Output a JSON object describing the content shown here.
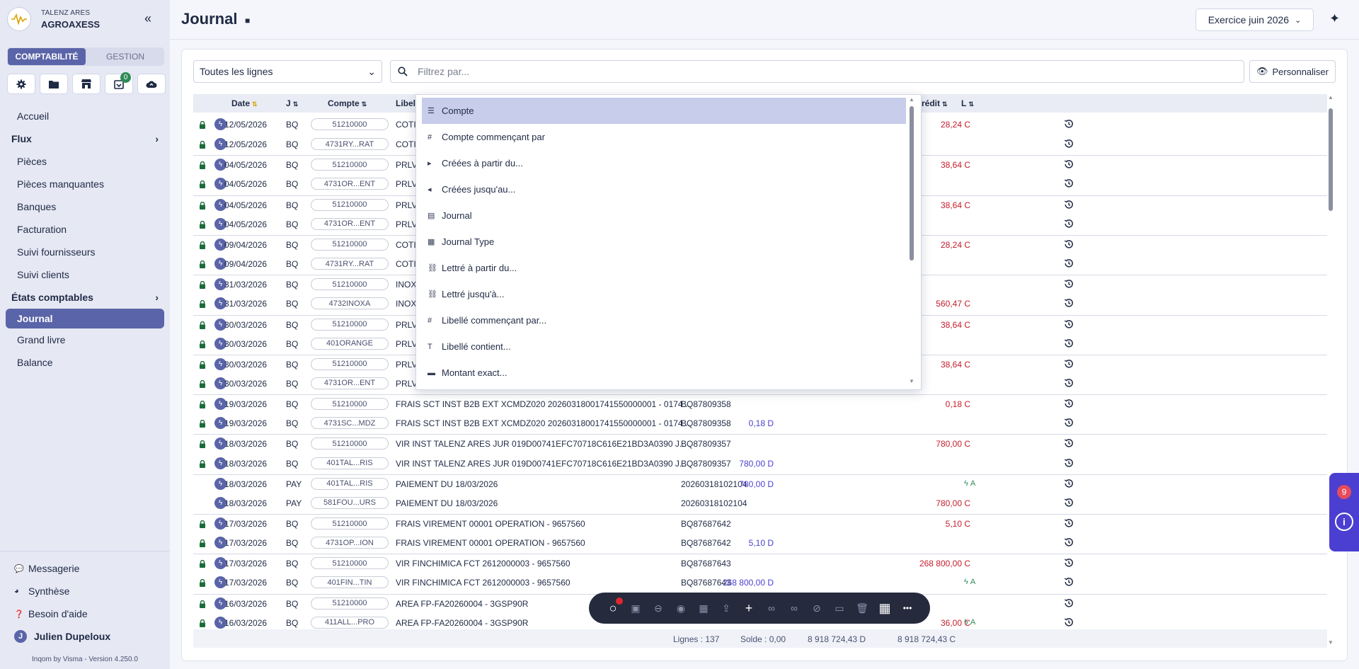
{
  "brand": {
    "subtitle": "TALENZ ARES",
    "name": "AGROAXESS"
  },
  "mode_tabs": [
    "COMPTABILITÉ",
    "GESTION"
  ],
  "quick_actions": [
    {
      "icon": "gear-icon"
    },
    {
      "icon": "folder-icon"
    },
    {
      "icon": "store-icon"
    },
    {
      "icon": "inbox-icon",
      "badge": "0"
    },
    {
      "icon": "cloud-upload-icon"
    }
  ],
  "nav": {
    "home": "Accueil",
    "flux": "Flux",
    "flux_items": [
      "Pièces",
      "Pièces manquantes",
      "Banques",
      "Facturation",
      "Suivi fournisseurs",
      "Suivi clients"
    ],
    "etats": "États comptables",
    "etats_items": [
      "Journal",
      "Grand livre",
      "Balance"
    ]
  },
  "nav_bottom": [
    "Messagerie",
    "Synthèse",
    "Besoin d'aide"
  ],
  "user": {
    "initial": "J",
    "name": "Julien Dupeloux"
  },
  "version": "Inqom by Visma - Version 4.250.0",
  "header": {
    "title": "Journal",
    "exercise": "Exercice juin 2026"
  },
  "filters": {
    "lines_select": "Toutes les lignes",
    "search_placeholder": "Filtrez par...",
    "customize": "Personnaliser"
  },
  "table": {
    "headers": {
      "date": "Date",
      "journal": "J",
      "account": "Compte",
      "label": "Libellé",
      "credit": "rédit",
      "lettrage": "L"
    },
    "rows": [
      {
        "lock": true,
        "zap": true,
        "date": "12/05/2026",
        "j": "BQ",
        "acct": "51210000",
        "label": "COTIS",
        "ref": "",
        "debit": "",
        "credit": "28,24 C",
        "let": "",
        "sep": false
      },
      {
        "lock": true,
        "zap": true,
        "date": "12/05/2026",
        "j": "BQ",
        "acct": "4731RY...RAT",
        "label": "COTIS",
        "ref": "",
        "debit": "",
        "credit": "",
        "let": "",
        "sep": false
      },
      {
        "lock": true,
        "zap": true,
        "date": "04/05/2026",
        "j": "BQ",
        "acct": "51210000",
        "label": "PRLV",
        "ref": "",
        "debit": "",
        "credit": "38,64 C",
        "let": "",
        "sep": true
      },
      {
        "lock": true,
        "zap": true,
        "date": "04/05/2026",
        "j": "BQ",
        "acct": "4731OR...ENT",
        "label": "PRLV",
        "ref": "",
        "debit": "",
        "credit": "",
        "let": "",
        "sep": false
      },
      {
        "lock": true,
        "zap": true,
        "date": "04/05/2026",
        "j": "BQ",
        "acct": "51210000",
        "label": "PRLV",
        "ref": "",
        "debit": "",
        "credit": "38,64 C",
        "let": "",
        "sep": true
      },
      {
        "lock": true,
        "zap": true,
        "date": "04/05/2026",
        "j": "BQ",
        "acct": "4731OR...ENT",
        "label": "PRLV",
        "ref": "",
        "debit": "",
        "credit": "",
        "let": "",
        "sep": false
      },
      {
        "lock": true,
        "zap": true,
        "date": "09/04/2026",
        "j": "BQ",
        "acct": "51210000",
        "label": "COTIS",
        "ref": "",
        "debit": "",
        "credit": "28,24 C",
        "let": "",
        "sep": true
      },
      {
        "lock": true,
        "zap": true,
        "date": "09/04/2026",
        "j": "BQ",
        "acct": "4731RY...RAT",
        "label": "COTIS",
        "ref": "",
        "debit": "",
        "credit": "",
        "let": "",
        "sep": false
      },
      {
        "lock": true,
        "zap": true,
        "date": "31/03/2026",
        "j": "BQ",
        "acct": "51210000",
        "label": "INOX",
        "ref": "",
        "debit": "",
        "credit": "",
        "let": "",
        "sep": true
      },
      {
        "lock": true,
        "zap": true,
        "date": "31/03/2026",
        "j": "BQ",
        "acct": "4732INOXA",
        "label": "INOX",
        "ref": "",
        "debit": "",
        "credit": "560,47 C",
        "let": "",
        "sep": false
      },
      {
        "lock": true,
        "zap": true,
        "date": "30/03/2026",
        "j": "BQ",
        "acct": "51210000",
        "label": "PRLV",
        "ref": "",
        "debit": "",
        "credit": "38,64 C",
        "let": "",
        "sep": true
      },
      {
        "lock": true,
        "zap": true,
        "date": "30/03/2026",
        "j": "BQ",
        "acct": "401ORANGE",
        "label": "PRLV",
        "ref": "",
        "debit": "",
        "credit": "",
        "let": "",
        "sep": false
      },
      {
        "lock": true,
        "zap": true,
        "date": "30/03/2026",
        "j": "BQ",
        "acct": "51210000",
        "label": "PRLV",
        "ref": "",
        "debit": "",
        "credit": "38,64 C",
        "let": "",
        "sep": true
      },
      {
        "lock": true,
        "zap": true,
        "date": "30/03/2026",
        "j": "BQ",
        "acct": "4731OR...ENT",
        "label": "PRLV",
        "ref": "",
        "debit": "",
        "credit": "",
        "let": "",
        "sep": false
      },
      {
        "lock": true,
        "zap": true,
        "date": "19/03/2026",
        "j": "BQ",
        "acct": "51210000",
        "label": "FRAIS SCT INST B2B EXT XCMDZ020 20260318001741550000001 - 0174...",
        "ref": "BQ87809358",
        "debit": "",
        "credit": "0,18 C",
        "let": "",
        "sep": true
      },
      {
        "lock": true,
        "zap": true,
        "date": "19/03/2026",
        "j": "BQ",
        "acct": "4731SC...MDZ",
        "label": "FRAIS SCT INST B2B EXT XCMDZ020 20260318001741550000001 - 0174...",
        "ref": "BQ87809358",
        "debit": "0,18 D",
        "credit": "",
        "let": "",
        "sep": false
      },
      {
        "lock": true,
        "zap": true,
        "date": "18/03/2026",
        "j": "BQ",
        "acct": "51210000",
        "label": "VIR INST TALENZ ARES JUR 019D00741EFC70718C616E21BD3A0390 J...",
        "ref": "BQ87809357",
        "debit": "",
        "credit": "780,00 C",
        "let": "",
        "sep": true
      },
      {
        "lock": true,
        "zap": true,
        "date": "18/03/2026",
        "j": "BQ",
        "acct": "401TAL...RIS",
        "label": "VIR INST TALENZ ARES JUR 019D00741EFC70718C616E21BD3A0390 J...",
        "ref": "BQ87809357",
        "debit": "780,00 D",
        "credit": "",
        "let": "",
        "sep": false
      },
      {
        "lock": false,
        "zap": true,
        "date": "18/03/2026",
        "j": "PAY",
        "acct": "401TAL...RIS",
        "label": "PAIEMENT DU 18/03/2026",
        "ref": "20260318102104",
        "debit": "780,00 D",
        "credit": "",
        "let": "A",
        "sep": true
      },
      {
        "lock": false,
        "zap": true,
        "date": "18/03/2026",
        "j": "PAY",
        "acct": "581FOU...URS",
        "label": "PAIEMENT DU 18/03/2026",
        "ref": "20260318102104",
        "debit": "",
        "credit": "780,00 C",
        "let": "",
        "sep": false
      },
      {
        "lock": true,
        "zap": true,
        "date": "17/03/2026",
        "j": "BQ",
        "acct": "51210000",
        "label": "FRAIS VIREMENT 00001 OPERATION - 9657560",
        "ref": "BQ87687642",
        "debit": "",
        "credit": "5,10 C",
        "let": "",
        "sep": true
      },
      {
        "lock": true,
        "zap": true,
        "date": "17/03/2026",
        "j": "BQ",
        "acct": "4731OP...ION",
        "label": "FRAIS VIREMENT 00001 OPERATION - 9657560",
        "ref": "BQ87687642",
        "debit": "5,10 D",
        "credit": "",
        "let": "",
        "sep": false
      },
      {
        "lock": true,
        "zap": true,
        "date": "17/03/2026",
        "j": "BQ",
        "acct": "51210000",
        "label": "VIR FINCHIMICA FCT 2612000003 - 9657560",
        "ref": "BQ87687643",
        "debit": "",
        "credit": "268 800,00 C",
        "let": "",
        "sep": true
      },
      {
        "lock": true,
        "zap": true,
        "date": "17/03/2026",
        "j": "BQ",
        "acct": "401FIN...TIN",
        "label": "VIR FINCHIMICA FCT 2612000003 - 9657560",
        "ref": "BQ87687643",
        "debit": "268 800,00 D",
        "credit": "",
        "let": "A",
        "sep": false
      },
      {
        "lock": true,
        "zap": true,
        "date": "16/03/2026",
        "j": "BQ",
        "acct": "51210000",
        "label": "AREA FP-FA20260004 - 3GSP90R",
        "ref": "",
        "debit": "",
        "credit": "",
        "let": "",
        "sep": true
      },
      {
        "lock": true,
        "zap": true,
        "date": "16/03/2026",
        "j": "BQ",
        "acct": "411ALL...PRO",
        "label": "AREA FP-FA20260004 - 3GSP90R",
        "ref": "",
        "debit": "",
        "credit": "36,00 C",
        "let": "A",
        "sep": false
      }
    ],
    "footer": {
      "lines": "Lignes : 137",
      "solde": "Solde : 0,00",
      "debit_total": "8 918 724,43 D",
      "credit_total": "8 918 724,43 C"
    }
  },
  "dropdown": {
    "items": [
      {
        "icon": "list-icon",
        "glyph": "☰",
        "label": "Compte",
        "active": true
      },
      {
        "icon": "hash-icon",
        "glyph": "#",
        "label": "Compte commençant par"
      },
      {
        "icon": "arrow-right-box-icon",
        "glyph": "▸",
        "label": "Créées à partir du..."
      },
      {
        "icon": "arrow-left-box-icon",
        "glyph": "◂",
        "label": "Créées jusqu'au..."
      },
      {
        "icon": "journal-icon",
        "glyph": "▤",
        "label": "Journal"
      },
      {
        "icon": "journal-type-icon",
        "glyph": "▦",
        "label": "Journal Type"
      },
      {
        "icon": "link-icon",
        "glyph": "⛓",
        "label": "Lettré à partir du..."
      },
      {
        "icon": "link-icon",
        "glyph": "⛓",
        "label": "Lettré jusqu'à..."
      },
      {
        "icon": "hash-icon",
        "glyph": "#",
        "label": "Libellé commençant par..."
      },
      {
        "icon": "text-icon",
        "glyph": "T",
        "label": "Libellé contient..."
      },
      {
        "icon": "money-icon",
        "glyph": "▬",
        "label": "Montant exact..."
      }
    ]
  },
  "toolbar": {
    "icons": [
      "record-icon",
      "ai-icon",
      "no-entry-icon",
      "chat-icon",
      "report-icon",
      "share-icon",
      "plus-icon",
      "link-icon",
      "link-alt-icon",
      "unlink-icon",
      "card-icon",
      "trash-icon",
      "calendar-icon",
      "more-icon"
    ]
  },
  "info_widget": {
    "badge": "9"
  },
  "colors": {
    "accent": "#5a64a8",
    "debit": "#4b3fd1",
    "credit": "#c41d2c",
    "lettrage": "#2e8b57"
  }
}
